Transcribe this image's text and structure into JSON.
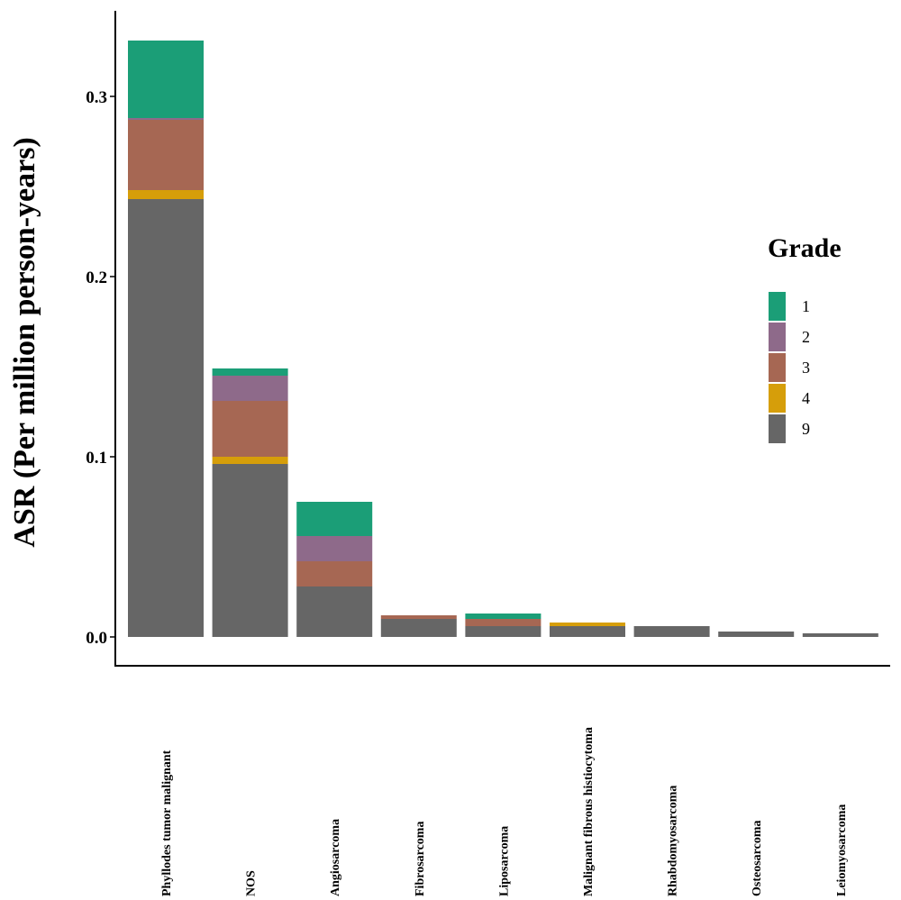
{
  "chart_data": {
    "type": "bar",
    "stacked": true,
    "title": "",
    "xlabel": "",
    "ylabel": "ASR (Per million person-years)",
    "ylim": [
      0,
      0.33
    ],
    "yticks": [
      0.0,
      0.1,
      0.2,
      0.3
    ],
    "ytick_labels": [
      "0.0",
      "0.1",
      "0.2",
      "0.3"
    ],
    "grid": false,
    "legend": {
      "title": "Grade",
      "position": "right"
    },
    "categories": [
      "Phyllodes tumor malignant",
      "NOS",
      "Angiosarcoma",
      "Fibrosarcoma",
      "Liposarcoma",
      "Malignant fibrous histiocytoma",
      "Rhabdomyosarcoma",
      "Osteosarcoma",
      "Leiomyosarcoma"
    ],
    "series": [
      {
        "name": "9",
        "color": "#666666",
        "values": [
          0.243,
          0.096,
          0.028,
          0.01,
          0.006,
          0.006,
          0.006,
          0.003,
          0.002
        ]
      },
      {
        "name": "4",
        "color": "#D69E0A",
        "values": [
          0.005,
          0.004,
          0.0,
          0.0,
          0.0,
          0.002,
          0.0,
          0.0,
          0.0
        ]
      },
      {
        "name": "3",
        "color": "#A66753",
        "values": [
          0.039,
          0.031,
          0.014,
          0.002,
          0.004,
          0.0,
          0.0,
          0.0,
          0.0
        ]
      },
      {
        "name": "2",
        "color": "#8E6A8A",
        "values": [
          0.001,
          0.014,
          0.014,
          0.0,
          0.0,
          0.0,
          0.0,
          0.0,
          0.0
        ]
      },
      {
        "name": "1",
        "color": "#1B9E77",
        "values": [
          0.043,
          0.004,
          0.019,
          0.0,
          0.003,
          0.0,
          0.0,
          0.0,
          0.0
        ]
      }
    ],
    "legend_order": [
      "1",
      "2",
      "3",
      "4",
      "9"
    ]
  }
}
